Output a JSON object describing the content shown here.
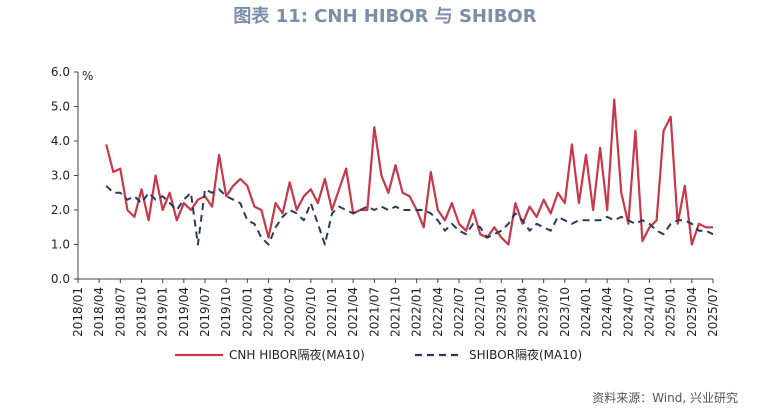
{
  "chart_data": {
    "type": "line",
    "title": "图表 11: CNH HIBOR 与 SHIBOR",
    "y_label": "%",
    "source": "资料来源：Wind, 兴业研究",
    "x": [
      "2018/05",
      "2018/06",
      "2018/07",
      "2018/08",
      "2018/09",
      "2018/10",
      "2018/11",
      "2018/12",
      "2019/01",
      "2019/02",
      "2019/03",
      "2019/04",
      "2019/05",
      "2019/06",
      "2019/07",
      "2019/08",
      "2019/09",
      "2019/10",
      "2019/11",
      "2019/12",
      "2020/01",
      "2020/02",
      "2020/03",
      "2020/04",
      "2020/05",
      "2020/06",
      "2020/07",
      "2020/08",
      "2020/09",
      "2020/10",
      "2020/11",
      "2020/12",
      "2021/01",
      "2021/02",
      "2021/03",
      "2021/04",
      "2021/05",
      "2021/06",
      "2021/07",
      "2021/08",
      "2021/09",
      "2021/10",
      "2021/11",
      "2021/12",
      "2022/01",
      "2022/02",
      "2022/03",
      "2022/04",
      "2022/05",
      "2022/06",
      "2022/07",
      "2022/08",
      "2022/09",
      "2022/10",
      "2022/11",
      "2022/12",
      "2023/01",
      "2023/02",
      "2023/03",
      "2023/04",
      "2023/05",
      "2023/06",
      "2023/07",
      "2023/08",
      "2023/09",
      "2023/10",
      "2023/11",
      "2023/12",
      "2024/01",
      "2024/02",
      "2024/03",
      "2024/04",
      "2024/05",
      "2024/06",
      "2024/07",
      "2024/08",
      "2024/09",
      "2024/10",
      "2024/11",
      "2024/12",
      "2025/01",
      "2025/02",
      "2025/03",
      "2025/04",
      "2025/05",
      "2025/06",
      "2025/07"
    ],
    "series": [
      {
        "name": "CNH HIBOR隔夜(MA10)",
        "color": "#c8374a",
        "dash": false,
        "values": [
          3.9,
          3.1,
          3.2,
          2.0,
          1.8,
          2.6,
          1.7,
          3.0,
          2.0,
          2.5,
          1.7,
          2.2,
          2.0,
          2.3,
          2.4,
          2.1,
          3.6,
          2.4,
          2.7,
          2.9,
          2.7,
          2.1,
          2.0,
          1.2,
          2.2,
          1.9,
          2.8,
          2.0,
          2.4,
          2.6,
          2.2,
          2.9,
          2.0,
          2.6,
          3.2,
          1.9,
          2.0,
          2.0,
          4.4,
          3.0,
          2.5,
          3.3,
          2.5,
          2.4,
          2.0,
          1.5,
          3.1,
          2.0,
          1.7,
          2.2,
          1.6,
          1.4,
          2.0,
          1.3,
          1.2,
          1.5,
          1.2,
          1.0,
          2.2,
          1.6,
          2.1,
          1.8,
          2.3,
          1.9,
          2.5,
          2.2,
          3.9,
          2.2,
          3.6,
          2.0,
          3.8,
          2.0,
          5.2,
          2.5,
          1.6,
          4.3,
          1.1,
          1.5,
          1.7,
          4.3,
          4.7,
          1.6,
          2.7,
          1.0,
          1.6,
          1.5,
          1.5
        ]
      },
      {
        "name": "SHIBOR隔夜(MA10)",
        "color": "#2b3a5c",
        "dash": true,
        "values": [
          2.7,
          2.5,
          2.5,
          2.3,
          2.4,
          2.2,
          2.5,
          2.3,
          2.4,
          2.2,
          2.0,
          2.3,
          2.5,
          1.0,
          2.6,
          2.5,
          2.6,
          2.4,
          2.3,
          2.2,
          1.7,
          1.6,
          1.2,
          1.0,
          1.5,
          1.8,
          2.0,
          1.9,
          1.7,
          2.2,
          1.6,
          1.0,
          1.9,
          2.1,
          2.0,
          1.9,
          2.0,
          2.1,
          2.0,
          2.1,
          2.0,
          2.1,
          2.0,
          2.0,
          2.0,
          2.0,
          1.9,
          1.7,
          1.4,
          1.6,
          1.4,
          1.3,
          1.6,
          1.5,
          1.2,
          1.3,
          1.4,
          1.6,
          1.9,
          1.7,
          1.4,
          1.6,
          1.5,
          1.4,
          1.8,
          1.7,
          1.6,
          1.7,
          1.7,
          1.7,
          1.7,
          1.8,
          1.7,
          1.8,
          1.7,
          1.6,
          1.7,
          1.6,
          1.4,
          1.3,
          1.6,
          1.7,
          1.7,
          1.6,
          1.4,
          1.4,
          1.3
        ]
      }
    ],
    "ylim": [
      0,
      6
    ],
    "yticks": [
      {
        "value": 0,
        "label": "0.0"
      },
      {
        "value": 1,
        "label": "1.0"
      },
      {
        "value": 2,
        "label": "2.0"
      },
      {
        "value": 3,
        "label": "3.0"
      },
      {
        "value": 4,
        "label": "4.0"
      },
      {
        "value": 5,
        "label": "5.0"
      },
      {
        "value": 6,
        "label": "6.0"
      }
    ],
    "xlim": [
      "2018/01",
      "2025/07"
    ],
    "xticks": [
      "2018/01",
      "2018/04",
      "2018/07",
      "2018/10",
      "2019/01",
      "2019/04",
      "2019/07",
      "2019/10",
      "2020/01",
      "2020/04",
      "2020/07",
      "2020/10",
      "2021/01",
      "2021/04",
      "2021/07",
      "2021/10",
      "2022/01",
      "2022/04",
      "2022/07",
      "2022/10",
      "2023/01",
      "2023/04",
      "2023/07",
      "2023/10",
      "2024/01",
      "2024/04",
      "2024/07",
      "2024/10",
      "2025/01",
      "2025/04",
      "2025/07"
    ],
    "legend": "bottom"
  }
}
